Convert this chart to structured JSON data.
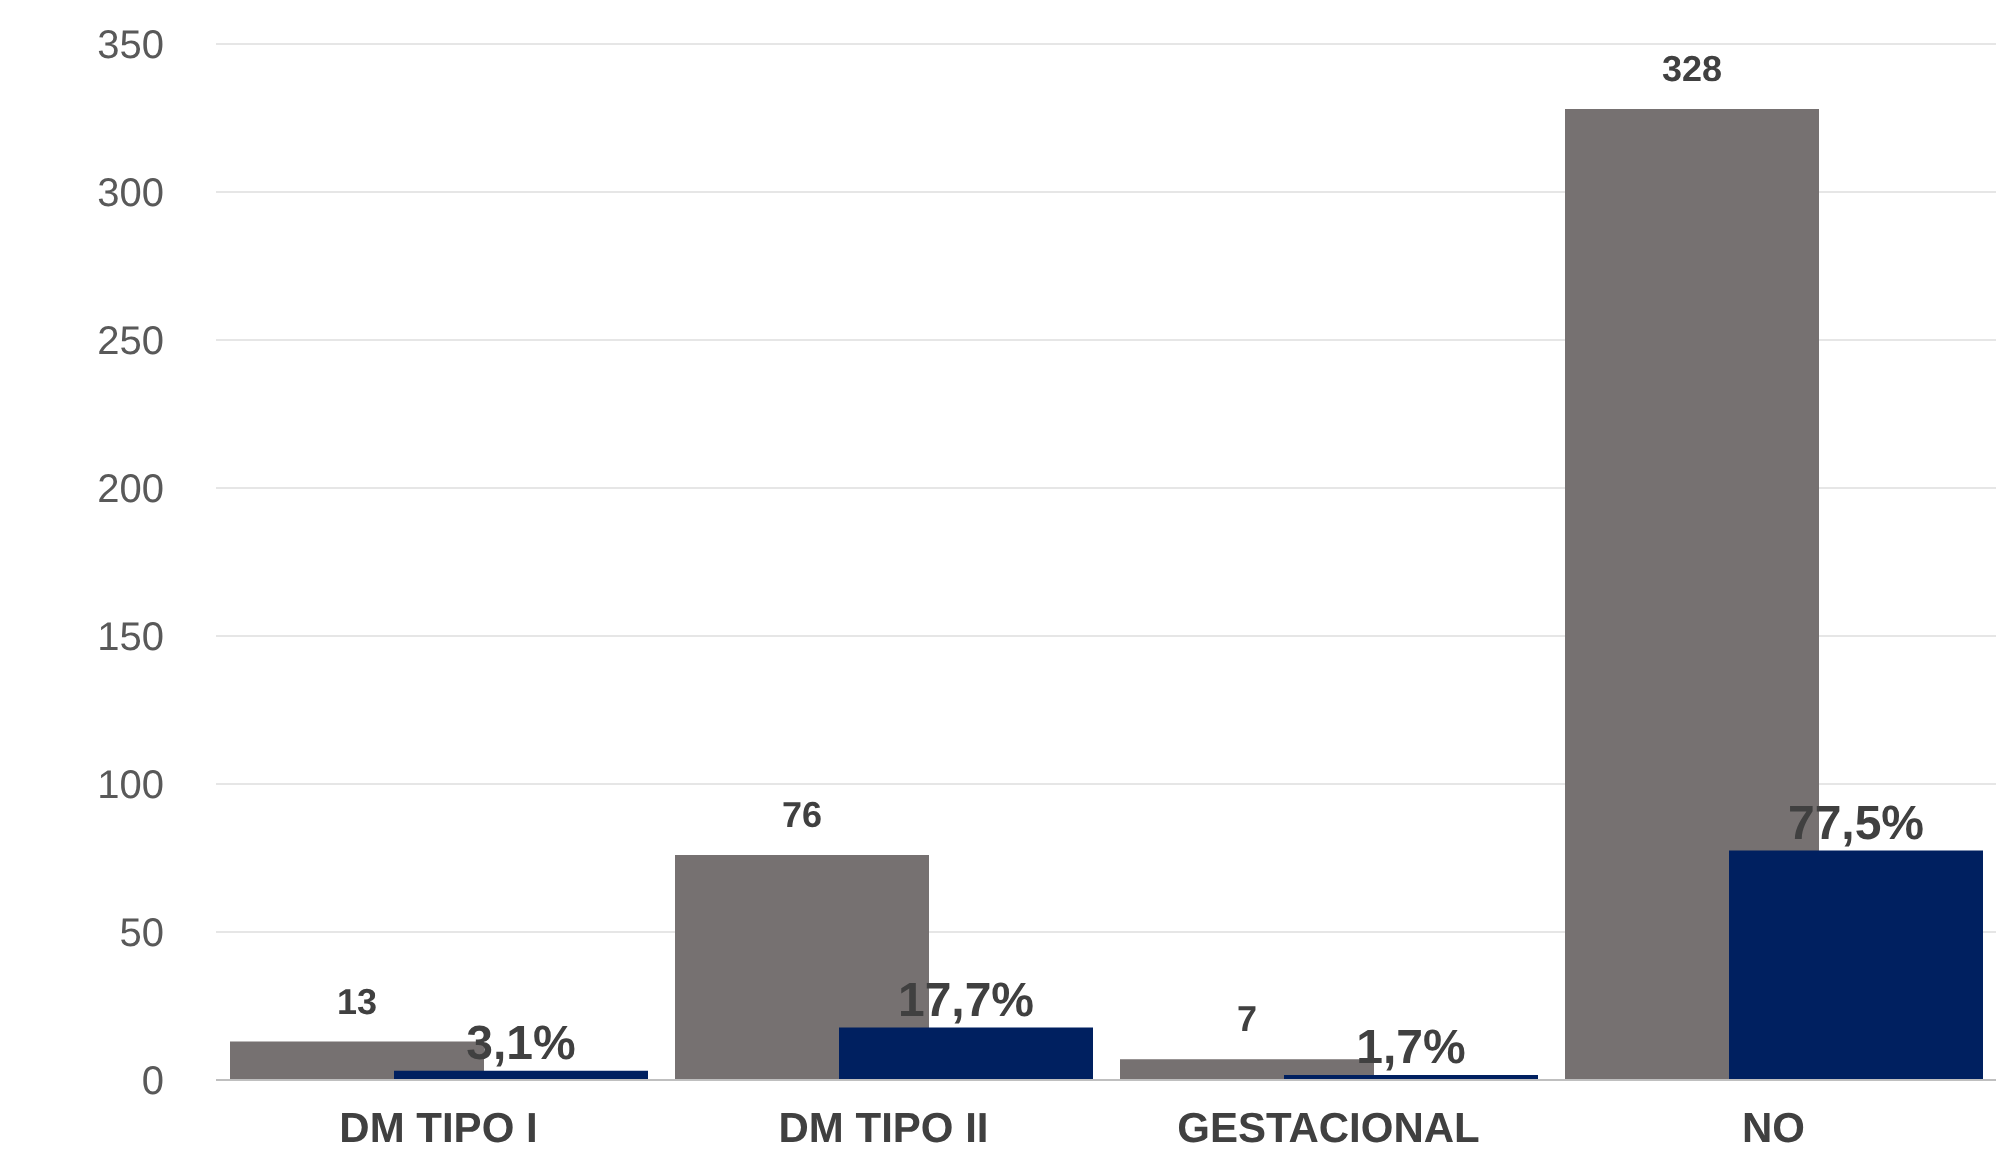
{
  "chart_data": {
    "type": "bar",
    "categories": [
      "DM TIPO I",
      "DM TIPO II",
      "GESTACIONAL",
      "NO"
    ],
    "series": [
      {
        "color": "#767171",
        "values": [
          13,
          76,
          7,
          328
        ],
        "value_labels": [
          "13",
          "76",
          "7",
          "328"
        ]
      },
      {
        "color": "#002060",
        "values": [
          3.1,
          17.7,
          1.7,
          77.5
        ],
        "value_labels": [
          "3,1%",
          "17,7%",
          "1,7%",
          "77,5%"
        ]
      }
    ],
    "ylim": [
      0,
      350
    ],
    "yticks": [
      0,
      50,
      100,
      150,
      200,
      250,
      300,
      350
    ],
    "grid": "y",
    "legend": false
  }
}
